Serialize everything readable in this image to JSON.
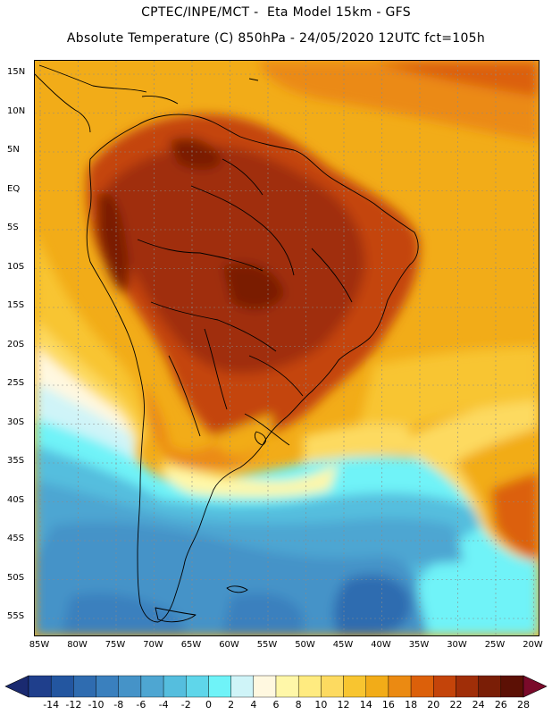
{
  "header": {
    "line1": "CPTEC/INPE/MCT -  Eta Model 15km - GFS",
    "line2": "Absolute Temperature (C) 850hPa - 24/05/2020 12UTC fct=105h"
  },
  "map": {
    "lat_ticks": [
      "15N",
      "10N",
      "5N",
      "EQ",
      "5S",
      "10S",
      "15S",
      "20S",
      "25S",
      "30S",
      "35S",
      "40S",
      "45S",
      "50S",
      "55S"
    ],
    "lon_ticks": [
      "85W",
      "80W",
      "75W",
      "70W",
      "65W",
      "60W",
      "55W",
      "50W",
      "45W",
      "40W",
      "35W",
      "30W",
      "25W",
      "20W"
    ],
    "gridline_color": "#8a8a8a",
    "coastline_color": "#000000"
  },
  "colorbar": {
    "levels": [
      "-14",
      "-12",
      "-10",
      "-8",
      "-6",
      "-4",
      "-2",
      "0",
      "2",
      "4",
      "6",
      "8",
      "10",
      "12",
      "14",
      "16",
      "18",
      "20",
      "22",
      "24",
      "26",
      "28"
    ],
    "colors": [
      "#1f3f8c",
      "#2356a0",
      "#2f6cb0",
      "#3a80be",
      "#4593c8",
      "#4ea6d2",
      "#55bede",
      "#5fd6ea",
      "#6ff3f8",
      "#cff4f8",
      "#fff8e0",
      "#fff7a8",
      "#ffeb80",
      "#fdda60",
      "#f8c530",
      "#f2ac18",
      "#eb8a12",
      "#dc600a",
      "#c4440a",
      "#a02e08",
      "#7a1e06",
      "#5c1005"
    ],
    "under_color": "#1a2a70",
    "over_color": "#7a0a2a"
  }
}
